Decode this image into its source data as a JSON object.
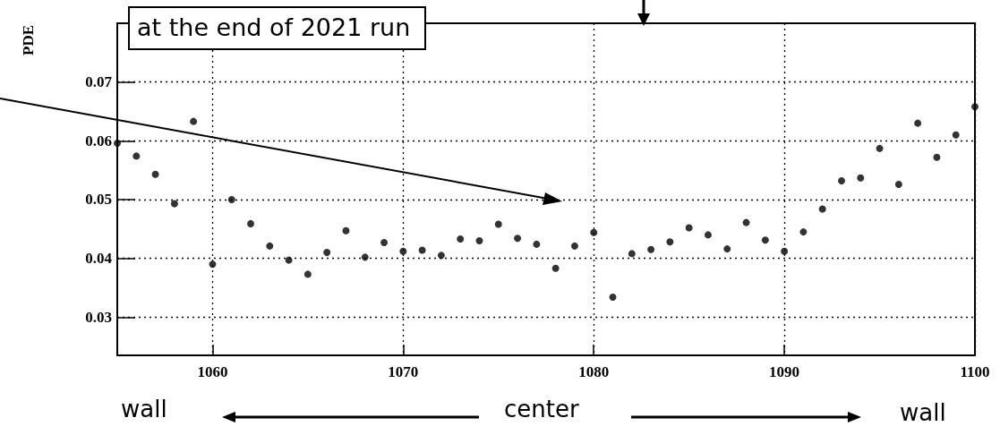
{
  "chart_data": {
    "type": "scatter",
    "ylabel": "PDE",
    "marker": "circle",
    "grid": true,
    "annotations": [
      "at the end of 2021 run",
      "wall",
      "center",
      "wall"
    ],
    "x": [
      1055,
      1056,
      1057,
      1058,
      1059,
      1060,
      1061,
      1062,
      1063,
      1064,
      1065,
      1066,
      1067,
      1068,
      1069,
      1070,
      1071,
      1072,
      1073,
      1074,
      1075,
      1076,
      1077,
      1078,
      1079,
      1080,
      1081,
      1082,
      1083,
      1084,
      1085,
      1086,
      1087,
      1088,
      1089,
      1090,
      1091,
      1092,
      1093,
      1094,
      1095,
      1096,
      1097,
      1098,
      1099,
      1100
    ],
    "series": [
      {
        "color": "#000000",
        "values": [
          0.0596,
          0.0574,
          0.0543,
          0.0493,
          0.0633,
          0.039,
          0.05,
          0.0459,
          0.0421,
          0.0397,
          0.0373,
          0.041,
          0.0447,
          0.0402,
          0.0427,
          0.0412,
          0.0414,
          0.0405,
          0.0433,
          0.043,
          0.0458,
          0.0434,
          0.0424,
          0.0383,
          0.0421,
          0.0444,
          0.0334,
          0.0408,
          0.0415,
          0.0428,
          0.0452,
          0.044,
          0.0416,
          0.0461,
          0.0431,
          0.0412,
          0.0445,
          0.0484,
          0.0532,
          0.0537,
          0.0587,
          0.0526,
          0.063,
          0.0572,
          0.061,
          0.0658
        ]
      }
    ],
    "xlim": [
      1055,
      1100
    ],
    "xticks": [
      1060,
      1070,
      1080,
      1090,
      1100
    ],
    "ylim": [
      0.0235,
      0.08
    ],
    "yticks": [
      0.03,
      0.04,
      0.05,
      0.06,
      0.07
    ]
  }
}
